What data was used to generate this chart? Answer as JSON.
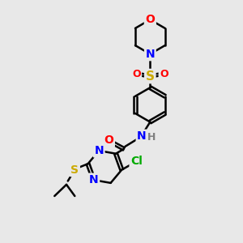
{
  "bg_color": "#e8e8e8",
  "atom_colors": {
    "C": "#000000",
    "N": "#0000ff",
    "O": "#ff0000",
    "S": "#ccaa00",
    "Cl": "#00aa00",
    "H": "#808080"
  },
  "bond_color": "#000000",
  "bond_width": 1.8,
  "font_size": 10,
  "fig_size": [
    3.0,
    3.0
  ],
  "dpi": 100,
  "xlim": [
    0,
    10
  ],
  "ylim": [
    0,
    10
  ]
}
